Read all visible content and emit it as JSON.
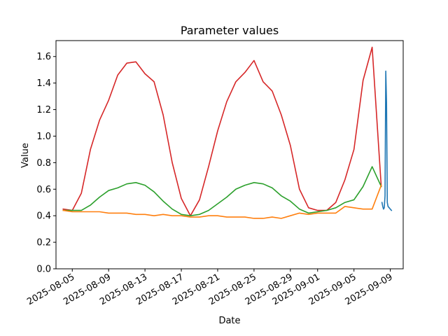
{
  "chart_data": {
    "type": "line",
    "title": "Parameter values",
    "xlabel": "Date",
    "ylabel": "Value",
    "ylim": [
      0.0,
      1.72
    ],
    "xlim": [
      "2025-08-03T05:00",
      "2025-09-10T10:00"
    ],
    "grid": false,
    "y_ticks": [
      "0.0",
      "0.2",
      "0.4",
      "0.6",
      "0.8",
      "1.0",
      "1.2",
      "1.4",
      "1.6"
    ],
    "x_ticks": [
      "2025-08-05",
      "2025-08-09",
      "2025-08-13",
      "2025-08-17",
      "2025-08-21",
      "2025-08-25",
      "2025-08-29",
      "2025-09-01",
      "2025-09-05",
      "2025-09-09"
    ],
    "series": [
      {
        "color": "#d62728",
        "x": [
          "2025-08-04",
          "2025-08-05",
          "2025-08-06",
          "2025-08-07",
          "2025-08-08",
          "2025-08-09",
          "2025-08-10",
          "2025-08-11",
          "2025-08-12",
          "2025-08-13",
          "2025-08-14",
          "2025-08-15",
          "2025-08-16",
          "2025-08-17",
          "2025-08-18",
          "2025-08-19",
          "2025-08-20",
          "2025-08-21",
          "2025-08-22",
          "2025-08-23",
          "2025-08-24",
          "2025-08-25",
          "2025-08-26",
          "2025-08-27",
          "2025-08-28",
          "2025-08-29",
          "2025-08-30",
          "2025-08-31",
          "2025-09-01",
          "2025-09-02",
          "2025-09-03",
          "2025-09-04",
          "2025-09-05",
          "2025-09-06",
          "2025-09-07",
          "2025-09-08"
        ],
        "y": [
          0.45,
          0.44,
          0.57,
          0.9,
          1.12,
          1.27,
          1.46,
          1.55,
          1.56,
          1.47,
          1.41,
          1.16,
          0.8,
          0.53,
          0.4,
          0.52,
          0.77,
          1.04,
          1.26,
          1.41,
          1.48,
          1.57,
          1.41,
          1.34,
          1.16,
          0.93,
          0.6,
          0.46,
          0.44,
          0.44,
          0.5,
          0.67,
          0.9,
          1.42,
          1.67,
          0.62
        ]
      },
      {
        "color": "#2ca02c",
        "x": [
          "2025-08-04",
          "2025-08-05",
          "2025-08-06",
          "2025-08-07",
          "2025-08-08",
          "2025-08-09",
          "2025-08-10",
          "2025-08-11",
          "2025-08-12",
          "2025-08-13",
          "2025-08-14",
          "2025-08-15",
          "2025-08-16",
          "2025-08-17",
          "2025-08-18",
          "2025-08-19",
          "2025-08-20",
          "2025-08-21",
          "2025-08-22",
          "2025-08-23",
          "2025-08-24",
          "2025-08-25",
          "2025-08-26",
          "2025-08-27",
          "2025-08-28",
          "2025-08-29",
          "2025-08-30",
          "2025-08-31",
          "2025-09-01",
          "2025-09-02",
          "2025-09-03",
          "2025-09-04",
          "2025-09-05",
          "2025-09-06",
          "2025-09-07",
          "2025-09-08"
        ],
        "y": [
          0.44,
          0.44,
          0.44,
          0.48,
          0.54,
          0.59,
          0.61,
          0.64,
          0.65,
          0.63,
          0.58,
          0.51,
          0.45,
          0.41,
          0.4,
          0.41,
          0.44,
          0.49,
          0.54,
          0.6,
          0.63,
          0.65,
          0.64,
          0.61,
          0.55,
          0.51,
          0.45,
          0.42,
          0.43,
          0.44,
          0.46,
          0.5,
          0.52,
          0.62,
          0.77,
          0.62
        ]
      },
      {
        "color": "#ff7f0e",
        "x": [
          "2025-08-04",
          "2025-08-05",
          "2025-08-06",
          "2025-08-07",
          "2025-08-08",
          "2025-08-09",
          "2025-08-10",
          "2025-08-11",
          "2025-08-12",
          "2025-08-13",
          "2025-08-14",
          "2025-08-15",
          "2025-08-16",
          "2025-08-17",
          "2025-08-18",
          "2025-08-19",
          "2025-08-20",
          "2025-08-21",
          "2025-08-22",
          "2025-08-23",
          "2025-08-24",
          "2025-08-25",
          "2025-08-26",
          "2025-08-27",
          "2025-08-28",
          "2025-08-29",
          "2025-08-30",
          "2025-08-31",
          "2025-09-01",
          "2025-09-02",
          "2025-09-03",
          "2025-09-04",
          "2025-09-05",
          "2025-09-06",
          "2025-09-07",
          "2025-09-08"
        ],
        "y": [
          0.44,
          0.43,
          0.43,
          0.43,
          0.43,
          0.42,
          0.42,
          0.42,
          0.41,
          0.41,
          0.4,
          0.41,
          0.4,
          0.4,
          0.39,
          0.39,
          0.4,
          0.4,
          0.39,
          0.39,
          0.39,
          0.38,
          0.38,
          0.39,
          0.38,
          0.4,
          0.42,
          0.41,
          0.42,
          0.42,
          0.42,
          0.47,
          0.46,
          0.45,
          0.45,
          0.63
        ]
      },
      {
        "color": "#1f77b4",
        "x": [
          "2025-09-08T02:00",
          "2025-09-08T04:00",
          "2025-09-08T06:00",
          "2025-09-08T08:00",
          "2025-09-08T10:00",
          "2025-09-08T12:00",
          "2025-09-08T14:00",
          "2025-09-08T16:00",
          "2025-09-08T18:00",
          "2025-09-08T21:00",
          "2025-09-09T00:00",
          "2025-09-09T03:00"
        ],
        "y": [
          0.5,
          0.47,
          0.45,
          0.46,
          0.55,
          1.49,
          1.25,
          0.5,
          0.47,
          0.46,
          0.45,
          0.44
        ]
      }
    ]
  }
}
